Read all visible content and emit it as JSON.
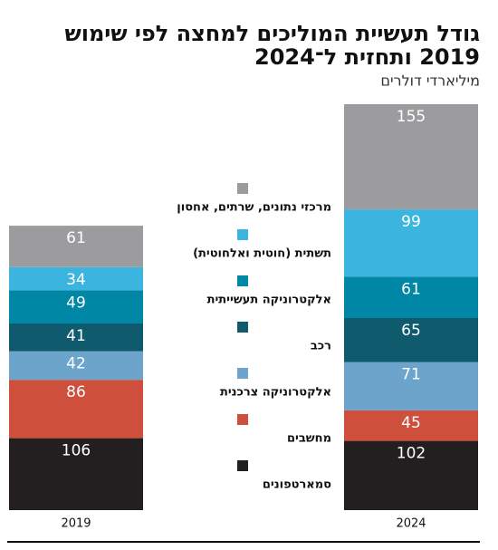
{
  "chart_data": {
    "type": "stacked_bar",
    "title": [
      "גודל תעשיית המוליכים למחצה לפי שימוש",
      "2019 ותחזית ל־2024"
    ],
    "subtitle": "מיליארדי דולרים",
    "categories": [
      "2019",
      "2024"
    ],
    "series": [
      {
        "name": "סמארטפונים",
        "color": "#231f20",
        "values": [
          106,
          102
        ]
      },
      {
        "name": "מחשבים",
        "color": "#cf4f3d",
        "values": [
          86,
          45
        ]
      },
      {
        "name": "אלקטרוניקה צרכנית",
        "color": "#6ca4cb",
        "values": [
          42,
          71
        ]
      },
      {
        "name": "רכב",
        "color": "#105a6d",
        "values": [
          41,
          65
        ]
      },
      {
        "name": "אלקטרוניקה תעשייתית",
        "color": "#0087a6",
        "values": [
          49,
          61
        ]
      },
      {
        "name": "תשתית (חוטית ואלחוטית)",
        "color": "#3bb5df",
        "values": [
          34,
          99
        ]
      },
      {
        "name": "מרכזי נתונים, שרתים, אחסון",
        "color": "#9c9c9e",
        "values": [
          61,
          155
        ]
      }
    ]
  }
}
